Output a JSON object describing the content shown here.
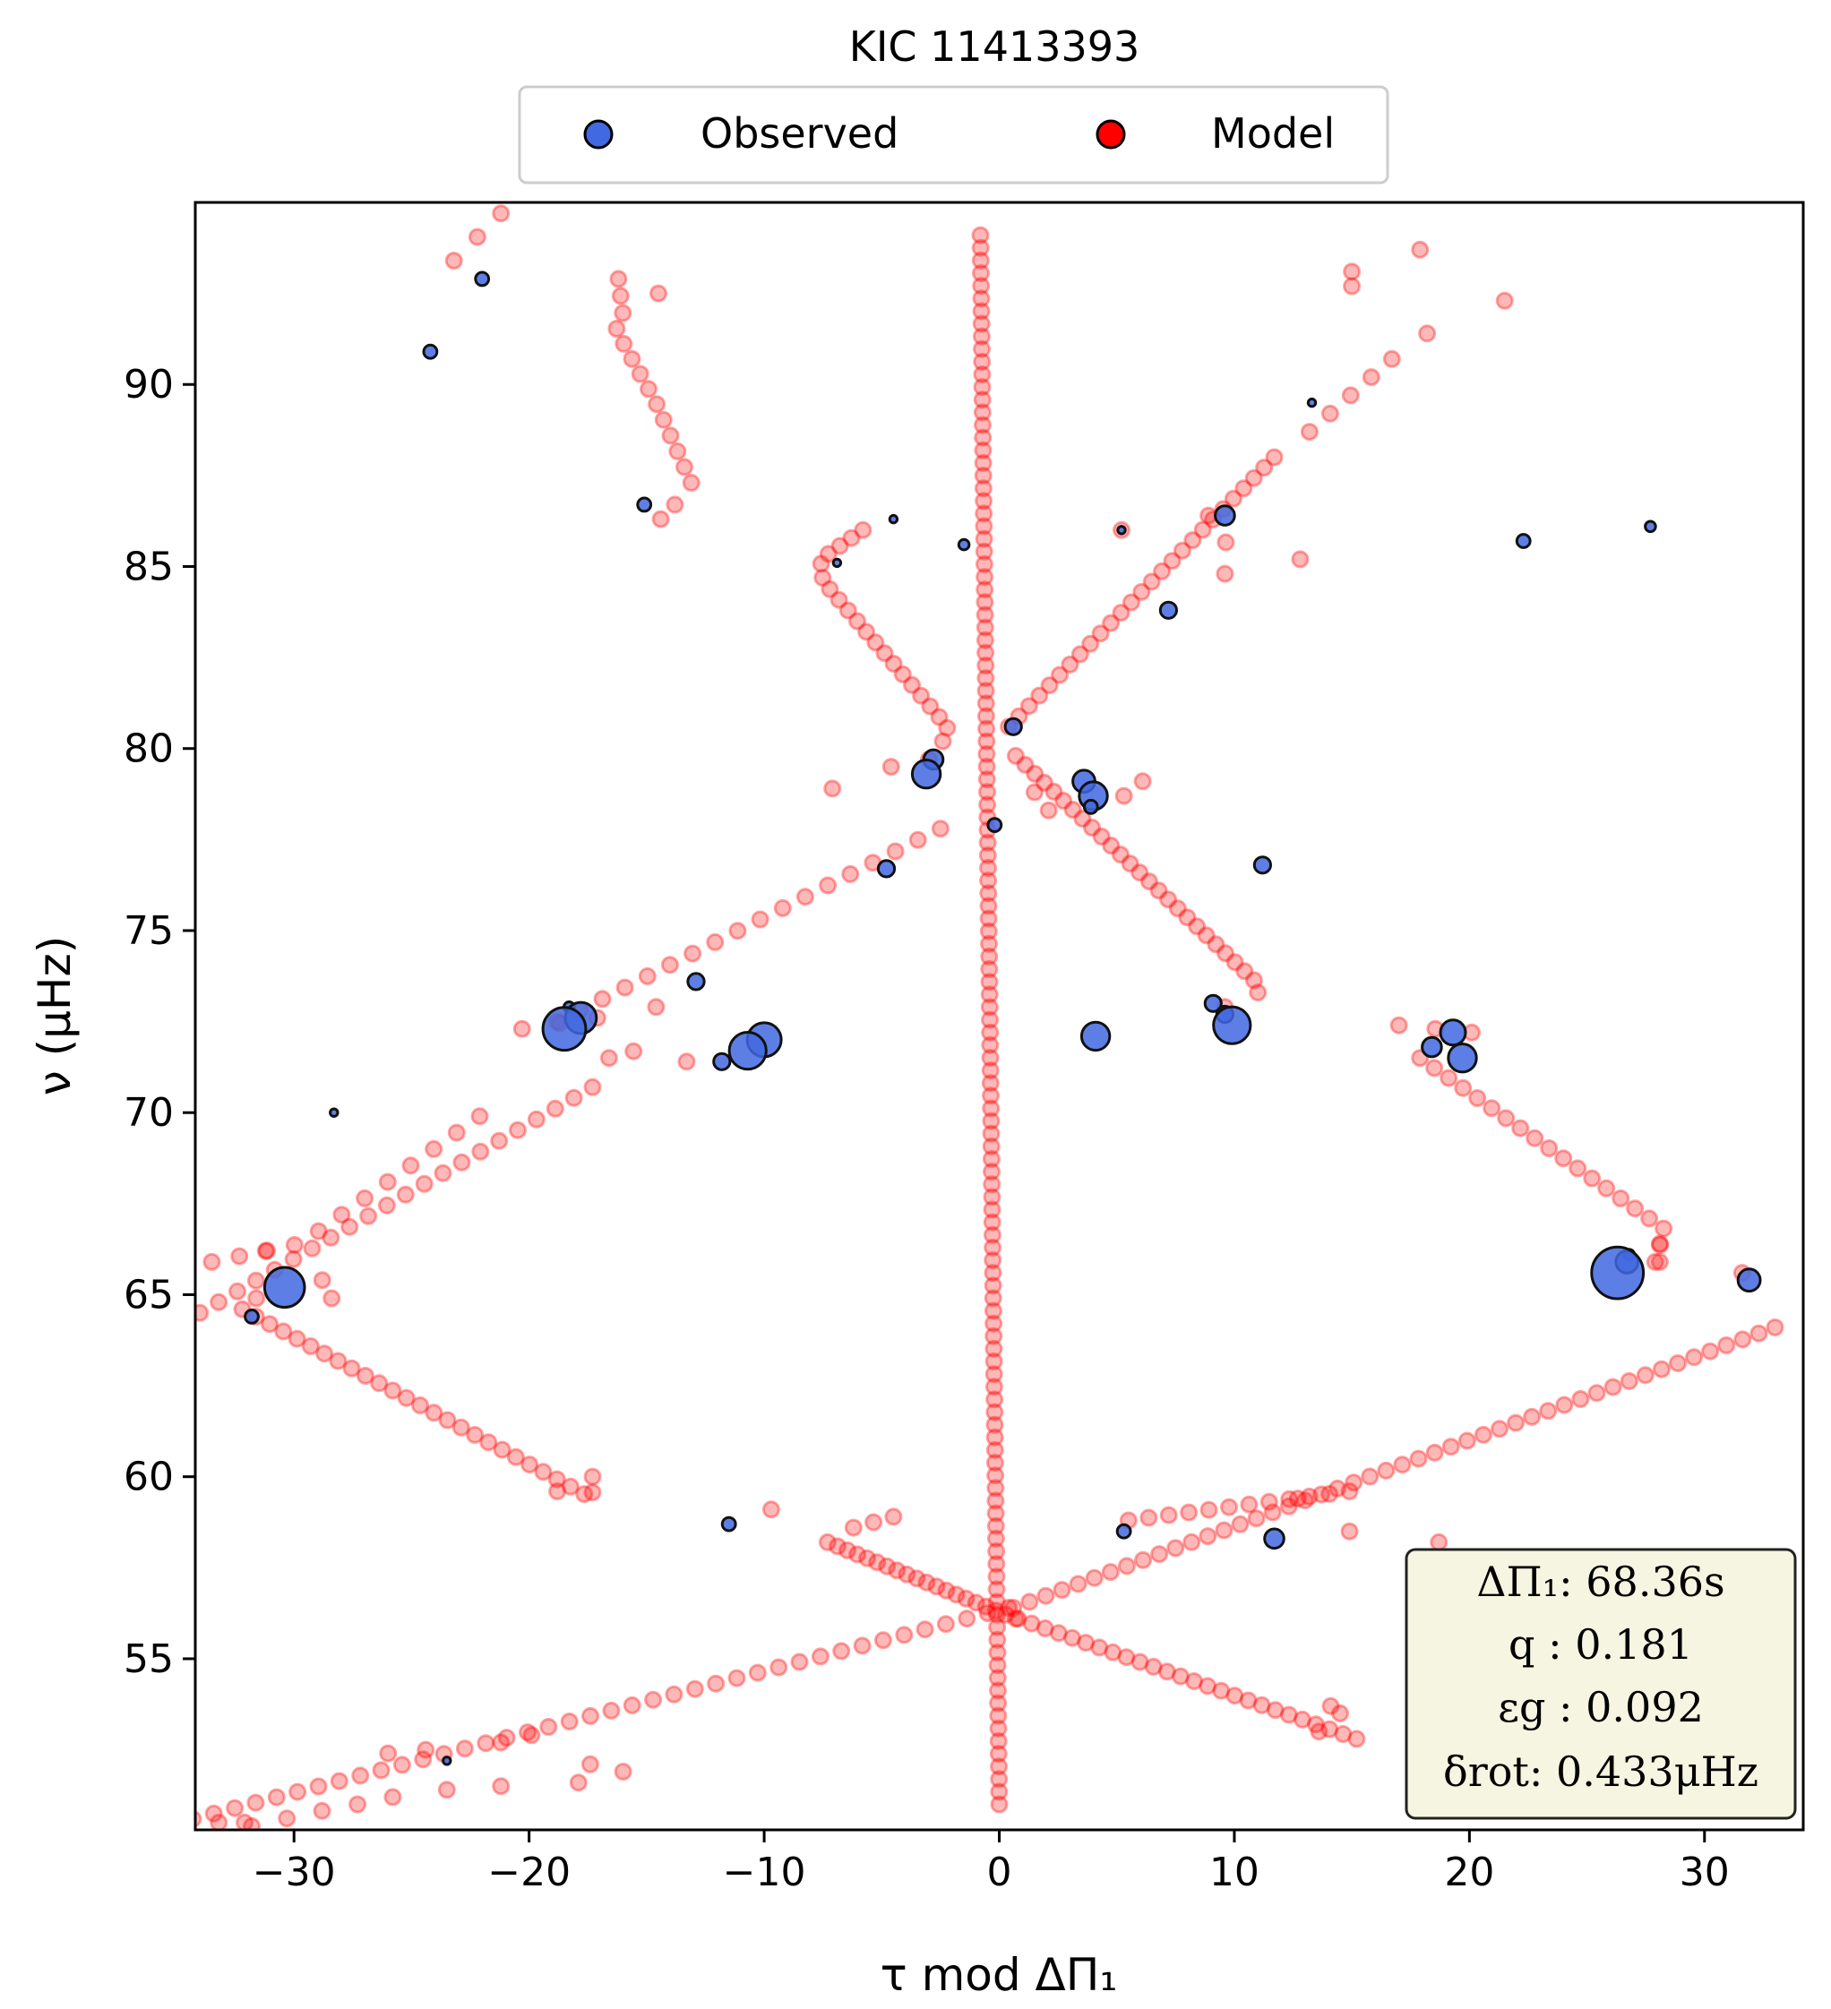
{
  "chart_data": {
    "type": "scatter",
    "title": "KIC 11413393",
    "xlabel": "τ mod ΔΠ₁",
    "ylabel": "ν (μHz)",
    "xlim": [
      -34.2,
      34.2
    ],
    "ylim": [
      50.3,
      95.0
    ],
    "xticks": [
      -30,
      -20,
      -10,
      0,
      10,
      20,
      30
    ],
    "yticks": [
      55,
      60,
      65,
      70,
      75,
      80,
      85,
      90
    ],
    "xtick_labels": [
      "−30",
      "−20",
      "−10",
      "0",
      "10",
      "20",
      "30"
    ],
    "ytick_labels": [
      "55",
      "60",
      "65",
      "70",
      "75",
      "80",
      "85",
      "90"
    ],
    "legend": {
      "placement": "top-center, outside",
      "entries": [
        {
          "label": "Observed",
          "color": "#4169e1"
        },
        {
          "label": "Model",
          "color": "#ff0000"
        }
      ]
    },
    "annotation_box": {
      "lines": [
        "ΔΠ₁: 68.36s",
        "q :  0.181",
        "εg : 0.092",
        "δrot: 0.433μHz"
      ],
      "background": "#f5f5e1"
    },
    "series": [
      {
        "name": "Observed",
        "color": "#4169e1",
        "points": [
          {
            "x": -22.0,
            "y": 92.9,
            "s": 3
          },
          {
            "x": -24.2,
            "y": 90.9,
            "s": 3
          },
          {
            "x": -15.1,
            "y": 86.7,
            "s": 3
          },
          {
            "x": -4.5,
            "y": 86.3,
            "s": 1
          },
          {
            "x": -1.5,
            "y": 85.6,
            "s": 2
          },
          {
            "x": -6.9,
            "y": 85.1,
            "s": 1
          },
          {
            "x": 9.6,
            "y": 86.4,
            "s": 5
          },
          {
            "x": 5.2,
            "y": 86.0,
            "s": 1
          },
          {
            "x": 22.3,
            "y": 85.7,
            "s": 3
          },
          {
            "x": 27.7,
            "y": 86.1,
            "s": 2
          },
          {
            "x": 13.3,
            "y": 89.5,
            "s": 1
          },
          {
            "x": 7.2,
            "y": 83.8,
            "s": 4
          },
          {
            "x": 0.6,
            "y": 80.6,
            "s": 4
          },
          {
            "x": -2.8,
            "y": 79.7,
            "s": 5
          },
          {
            "x": -3.1,
            "y": 79.3,
            "s": 8
          },
          {
            "x": 3.6,
            "y": 79.1,
            "s": 6
          },
          {
            "x": 4.0,
            "y": 78.7,
            "s": 8
          },
          {
            "x": 3.9,
            "y": 78.4,
            "s": 3
          },
          {
            "x": -0.2,
            "y": 77.9,
            "s": 3
          },
          {
            "x": -4.8,
            "y": 76.7,
            "s": 4
          },
          {
            "x": 11.2,
            "y": 76.8,
            "s": 4
          },
          {
            "x": -12.9,
            "y": 73.6,
            "s": 4
          },
          {
            "x": -18.3,
            "y": 72.9,
            "s": 2
          },
          {
            "x": -17.8,
            "y": 72.6,
            "s": 9
          },
          {
            "x": -18.5,
            "y": 72.3,
            "s": 13
          },
          {
            "x": -10.0,
            "y": 72.0,
            "s": 10
          },
          {
            "x": -10.7,
            "y": 71.7,
            "s": 11
          },
          {
            "x": -11.8,
            "y": 71.4,
            "s": 4
          },
          {
            "x": 4.1,
            "y": 72.1,
            "s": 8
          },
          {
            "x": 9.1,
            "y": 73.0,
            "s": 4
          },
          {
            "x": 9.6,
            "y": 72.7,
            "s": 4
          },
          {
            "x": 9.9,
            "y": 72.4,
            "s": 11
          },
          {
            "x": 19.3,
            "y": 72.2,
            "s": 7
          },
          {
            "x": 18.4,
            "y": 71.8,
            "s": 5
          },
          {
            "x": 19.7,
            "y": 71.5,
            "s": 8
          },
          {
            "x": -28.3,
            "y": 70.0,
            "s": 1
          },
          {
            "x": -30.4,
            "y": 65.2,
            "s": 12
          },
          {
            "x": -31.8,
            "y": 64.4,
            "s": 3
          },
          {
            "x": 26.8,
            "y": 66.1,
            "s": 2
          },
          {
            "x": 26.7,
            "y": 65.9,
            "s": 6
          },
          {
            "x": 26.3,
            "y": 65.6,
            "s": 16
          },
          {
            "x": 31.9,
            "y": 65.4,
            "s": 6
          },
          {
            "x": -11.5,
            "y": 58.7,
            "s": 3
          },
          {
            "x": 5.3,
            "y": 58.5,
            "s": 3
          },
          {
            "x": 11.7,
            "y": 58.3,
            "s": 5
          },
          {
            "x": -23.5,
            "y": 52.2,
            "s": 1
          }
        ]
      },
      {
        "name": "Model",
        "color": "#ff0000",
        "segments": [
          {
            "points": [
              [
                -0.8,
                94.1
              ],
              [
                0.0,
                51.0
              ]
            ],
            "n": 125
          },
          {
            "points": [
              [
                -21.2,
                94.7
              ],
              [
                -23.2,
                93.4
              ]
            ],
            "n": 3
          },
          {
            "points": [
              [
                -16.2,
                92.9
              ],
              [
                -16.0,
                91.9
              ],
              [
                -16.3,
                91.5
              ],
              [
                -14.6,
                89.5
              ],
              [
                -13.1,
                87.3
              ]
            ],
            "n": 14
          },
          {
            "points": [
              [
                -13.8,
                86.7
              ],
              [
                -14.4,
                86.3
              ]
            ],
            "n": 2
          },
          {
            "points": [
              [
                -14.5,
                92.5
              ]
            ],
            "n": 1
          },
          {
            "points": [
              [
                -5.8,
                86.0
              ],
              [
                -7.6,
                85.2
              ],
              [
                -7.5,
                84.6
              ],
              [
                -2.2,
                80.6
              ],
              [
                -2.4,
                80.2
              ]
            ],
            "n": 21
          },
          {
            "points": [
              [
                -3.0,
                79.7
              ],
              [
                -4.6,
                79.5
              ]
            ],
            "n": 2
          },
          {
            "points": [
              [
                -7.1,
                78.9
              ]
            ],
            "n": 1
          },
          {
            "points": [
              [
                -18.8,
                72.5
              ],
              [
                -2.5,
                77.8
              ]
            ],
            "n": 18
          },
          {
            "points": [
              [
                -14.6,
                72.9
              ],
              [
                -16.1,
                71.0
              ],
              [
                -16.6,
                71.5
              ]
            ],
            "n": 3
          },
          {
            "points": [
              [
                -13.3,
                71.4
              ]
            ],
            "n": 1
          },
          {
            "points": [
              [
                -20.3,
                72.3
              ],
              [
                -17.1,
                72.6
              ]
            ],
            "n": 3
          },
          {
            "points": [
              [
                -34.0,
                64.5
              ],
              [
                -17.3,
                70.7
              ]
            ],
            "n": 22
          },
          {
            "points": [
              [
                -33.5,
                65.9
              ],
              [
                -29.7,
                66.4
              ],
              [
                -22.1,
                69.9
              ]
            ],
            "n": 12
          },
          {
            "points": [
              [
                -31.6,
                64.9
              ],
              [
                -18.9,
                72.4
              ]
            ],
            "n": 1
          },
          {
            "points": [
              [
                -32.2,
                64.6
              ],
              [
                -17.3,
                59.4
              ],
              [
                -17.3,
                60.0
              ]
            ],
            "n": 28
          },
          {
            "points": [
              [
                -28.8,
                65.4
              ],
              [
                -28.4,
                64.9
              ]
            ],
            "n": 2
          },
          {
            "points": [
              [
                -31.2,
                66.2
              ]
            ],
            "n": 1
          },
          {
            "points": [
              [
                -18.8,
                59.6
              ]
            ],
            "n": 1
          },
          {
            "points": [
              [
                -7.3,
                58.2
              ],
              [
                0.7,
                56.1
              ]
            ],
            "n": 20
          },
          {
            "points": [
              [
                -6.2,
                58.6
              ],
              [
                -4.5,
                58.9
              ]
            ],
            "n": 3
          },
          {
            "points": [
              [
                -9.7,
                59.1
              ]
            ],
            "n": 1
          },
          {
            "points": [
              [
                -34.3,
                50.6
              ],
              [
                0.4,
                56.4
              ]
            ],
            "n": 40
          },
          {
            "points": [
              [
                -26.0,
                52.4
              ],
              [
                -24.4,
                52.5
              ]
            ],
            "n": 2
          },
          {
            "points": [
              [
                -21.2,
                52.7
              ],
              [
                -17.4,
                52.1
              ]
            ],
            "n": 2
          },
          {
            "points": [
              [
                -16.0,
                51.9
              ],
              [
                -17.9,
                51.6
              ]
            ],
            "n": 2
          },
          {
            "points": [
              [
                -19.9,
                52.9
              ]
            ],
            "n": 1
          },
          {
            "points": [
              [
                -21.2,
                51.5
              ],
              [
                -23.5,
                51.4
              ]
            ],
            "n": 2
          },
          {
            "points": [
              [
                -25.8,
                51.2
              ],
              [
                -27.3,
                51.0
              ],
              [
                -29.0,
                50.8
              ],
              [
                -30.4,
                50.6
              ],
              [
                -31.8,
                50.4
              ]
            ],
            "n": 5
          },
          {
            "points": [
              [
                -32.1,
                50.5
              ]
            ],
            "n": 1
          },
          {
            "points": [
              [
                -33.2,
                50.5
              ]
            ],
            "n": 1
          },
          {
            "points": [
              [
                0.8,
                56.1
              ],
              [
                15.2,
                52.8
              ]
            ],
            "n": 26
          },
          {
            "points": [
              [
                14.1,
                53.7
              ],
              [
                14.5,
                53.5
              ]
            ],
            "n": 2
          },
          {
            "points": [
              [
                13.6,
                53.0
              ]
            ],
            "n": 1
          },
          {
            "points": [
              [
                0.6,
                56.4
              ],
              [
                33.0,
                64.1
              ]
            ],
            "n": 48
          },
          {
            "points": [
              [
                5.5,
                58.8
              ],
              [
                14.9,
                59.6
              ]
            ],
            "n": 12
          },
          {
            "points": [
              [
                12.7,
                59.4
              ]
            ],
            "n": 1
          },
          {
            "points": [
              [
                18.7,
                58.2
              ],
              [
                14.9,
                58.5
              ]
            ],
            "n": 2
          },
          {
            "points": [
              [
                0.4,
                80.6
              ],
              [
                11.7,
                88.0
              ]
            ],
            "n": 27
          },
          {
            "points": [
              [
                13.2,
                88.7
              ],
              [
                16.7,
                90.7
              ]
            ],
            "n": 5
          },
          {
            "points": [
              [
                18.2,
                91.4
              ],
              [
                21.5,
                92.3
              ]
            ],
            "n": 2
          },
          {
            "points": [
              [
                17.9,
                93.7
              ]
            ],
            "n": 1
          },
          {
            "points": [
              [
                15.0,
                92.7
              ],
              [
                15.0,
                93.1
              ]
            ],
            "n": 2
          },
          {
            "points": [
              [
                8.9,
                86.4
              ],
              [
                9.7,
                85.6
              ],
              [
                9.6,
                84.8
              ]
            ],
            "n": 3
          },
          {
            "points": [
              [
                12.8,
                85.2
              ]
            ],
            "n": 1
          },
          {
            "points": [
              [
                5.2,
                86.0
              ]
            ],
            "n": 1
          },
          {
            "points": [
              [
                0.7,
                79.8
              ],
              [
                10.9,
                73.6
              ],
              [
                11.0,
                73.3
              ]
            ],
            "n": 27
          },
          {
            "points": [
              [
                5.3,
                78.7
              ],
              [
                6.1,
                79.1
              ]
            ],
            "n": 2
          },
          {
            "points": [
              [
                1.5,
                78.8
              ],
              [
                2.1,
                78.3
              ]
            ],
            "n": 2
          },
          {
            "points": [
              [
                9.6,
                72.9
              ]
            ],
            "n": 1
          },
          {
            "points": [
              [
                17.0,
                72.4
              ],
              [
                20.1,
                72.2
              ]
            ],
            "n": 3
          },
          {
            "points": [
              [
                17.9,
                71.5
              ],
              [
                28.3,
                66.8
              ],
              [
                27.9,
                65.9
              ]
            ],
            "n": 20
          },
          {
            "points": [
              [
                28.1,
                66.4
              ]
            ],
            "n": 1
          },
          {
            "points": [
              [
                28.1,
                65.9
              ]
            ],
            "n": 1
          },
          {
            "points": [
              [
                31.6,
                65.6
              ]
            ],
            "n": 1
          },
          {
            "points": [
              [
                28.5,
                52.6
              ],
              [
                32.0,
                52.4
              ]
            ],
            "n": 2
          },
          {
            "points": [
              [
                30.9,
                51.1
              ],
              [
                31.2,
                51.1
              ]
            ],
            "n": 2
          }
        ]
      }
    ]
  }
}
